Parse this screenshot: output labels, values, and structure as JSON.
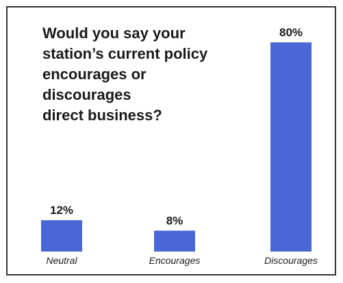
{
  "chart_data": {
    "type": "bar",
    "title_lines": [
      "Would you say your",
      "station’s current policy",
      "encourages or",
      "discourages",
      "direct business?"
    ],
    "categories": [
      "Neutral",
      "Encourages",
      "Discourages"
    ],
    "values": [
      12,
      8,
      80
    ],
    "value_labels": [
      "12%",
      "8%",
      "80%"
    ],
    "unit": "%",
    "ylim": [
      0,
      80
    ],
    "bar_color": "#4a67d6",
    "grid": false,
    "xlabel": "",
    "ylabel": ""
  }
}
